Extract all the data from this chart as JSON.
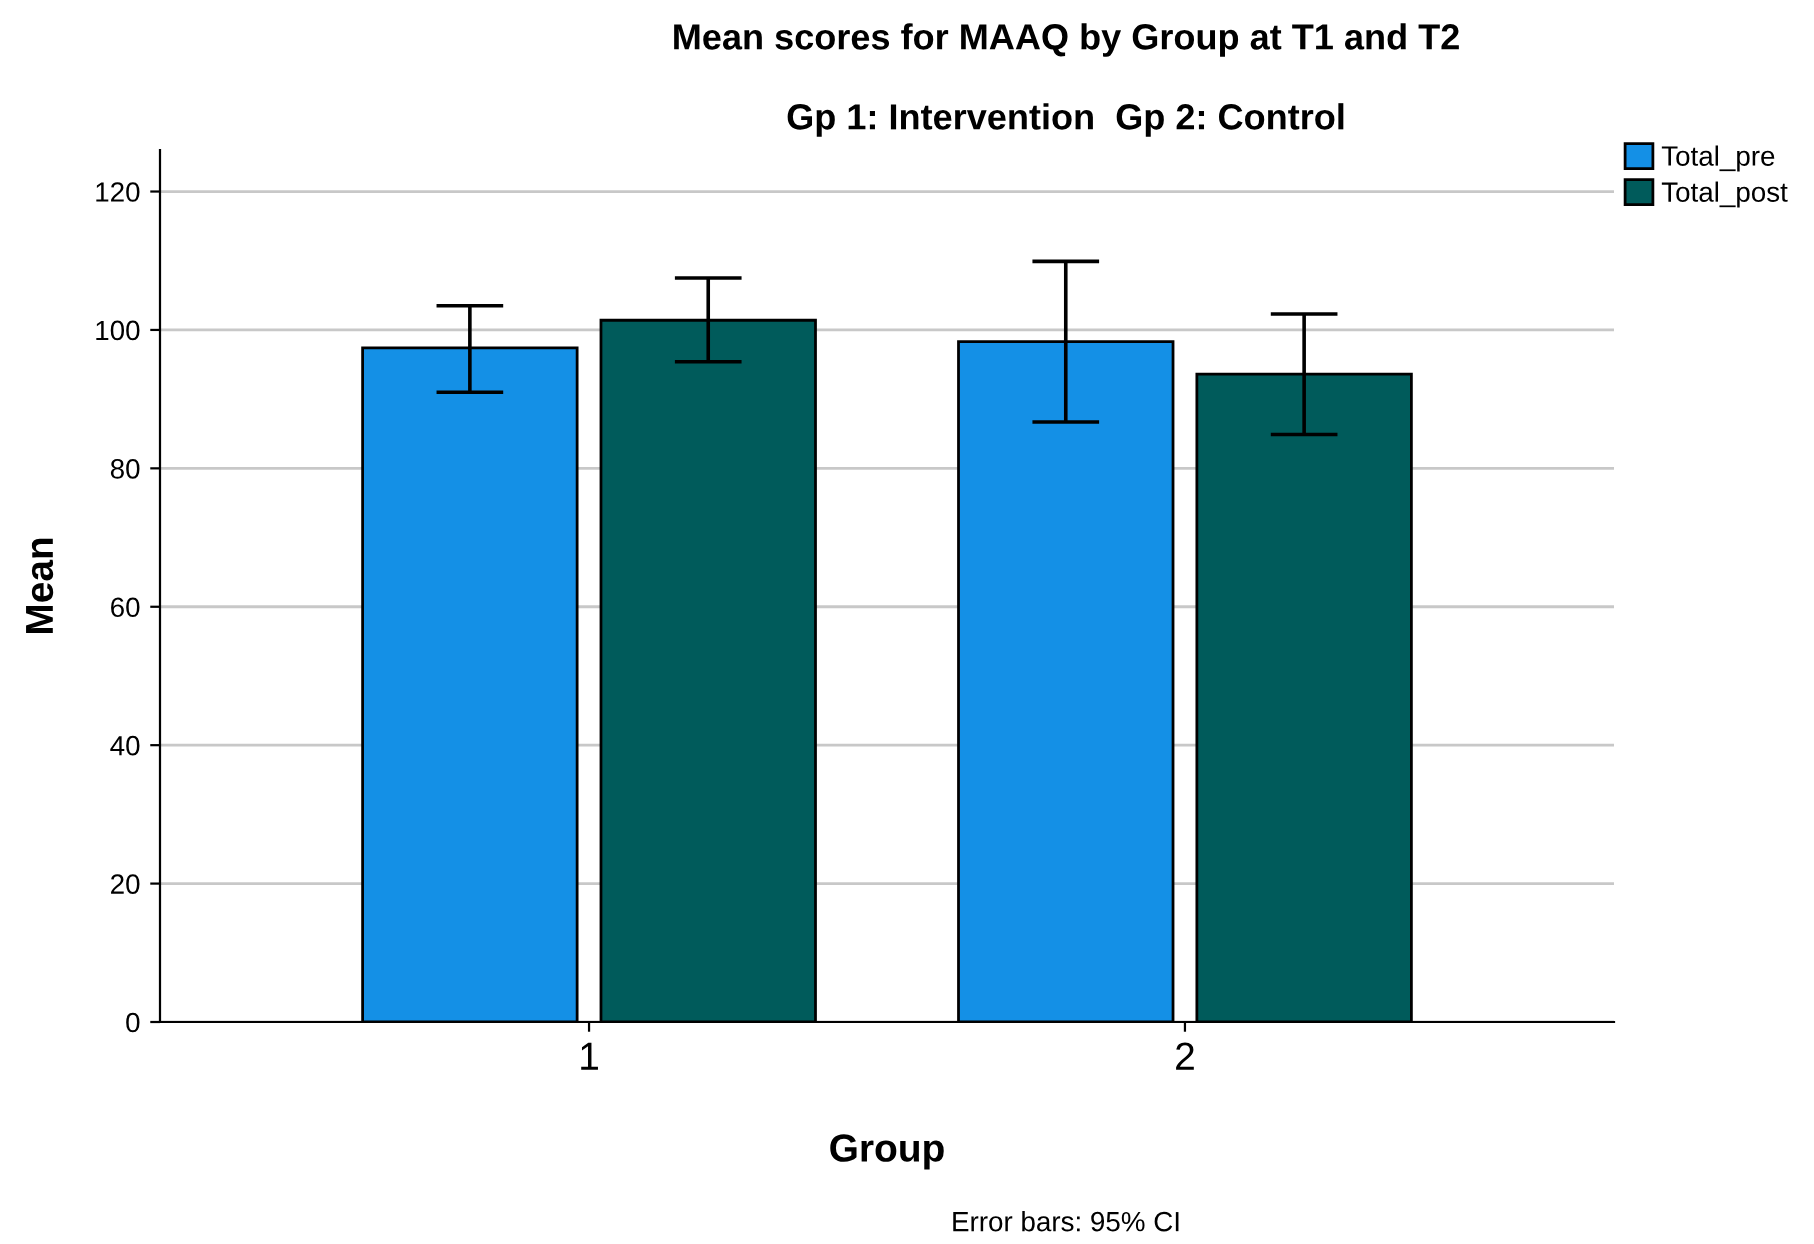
{
  "chart_data": {
    "type": "bar",
    "title": "Mean scores for MAAQ by Group at T1 and T2",
    "subtitle": "Gp 1: Intervention  Gp 2: Control",
    "xlabel": "Group",
    "ylabel": "Mean",
    "annotations": [
      "Error bars: 95% CI"
    ],
    "categories": [
      "1",
      "2"
    ],
    "series": [
      {
        "name": "Total_pre",
        "color": "#1490e6",
        "values": [
          97.4,
          98.3
        ],
        "errors": [
          [
            91.0,
            103.5
          ],
          [
            86.7,
            109.9
          ]
        ]
      },
      {
        "name": "Total_post",
        "color": "#005b5b",
        "values": [
          101.4,
          93.6
        ],
        "errors": [
          [
            95.4,
            107.5
          ],
          [
            84.9,
            102.3
          ]
        ]
      }
    ],
    "ylim": [
      0,
      126
    ],
    "yticks": [
      0,
      20,
      40,
      60,
      80,
      100,
      120
    ],
    "grid": "y",
    "legend": "top right"
  }
}
